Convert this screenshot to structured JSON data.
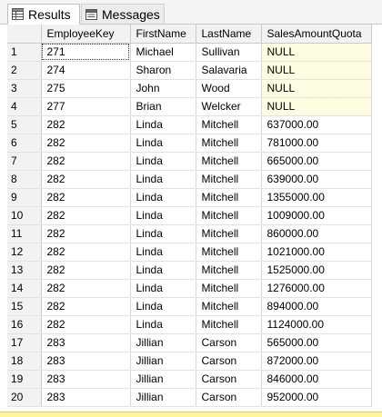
{
  "tabs": [
    {
      "label": "Results",
      "icon": "grid-icon",
      "active": true
    },
    {
      "label": "Messages",
      "icon": "messages-icon",
      "active": false
    }
  ],
  "columns": [
    "",
    "EmployeeKey",
    "FirstName",
    "LastName",
    "SalesAmountQuota"
  ],
  "rows": [
    {
      "n": "1",
      "key": "271",
      "first": "Michael",
      "last": "Sullivan",
      "quota": "NULL"
    },
    {
      "n": "2",
      "key": "274",
      "first": "Sharon",
      "last": "Salavaria",
      "quota": "NULL"
    },
    {
      "n": "3",
      "key": "275",
      "first": "John",
      "last": "Wood",
      "quota": "NULL"
    },
    {
      "n": "4",
      "key": "277",
      "first": "Brian",
      "last": "Welcker",
      "quota": "NULL"
    },
    {
      "n": "5",
      "key": "282",
      "first": "Linda",
      "last": "Mitchell",
      "quota": "637000.00"
    },
    {
      "n": "6",
      "key": "282",
      "first": "Linda",
      "last": "Mitchell",
      "quota": "781000.00"
    },
    {
      "n": "7",
      "key": "282",
      "first": "Linda",
      "last": "Mitchell",
      "quota": "665000.00"
    },
    {
      "n": "8",
      "key": "282",
      "first": "Linda",
      "last": "Mitchell",
      "quota": "639000.00"
    },
    {
      "n": "9",
      "key": "282",
      "first": "Linda",
      "last": "Mitchell",
      "quota": "1355000.00"
    },
    {
      "n": "10",
      "key": "282",
      "first": "Linda",
      "last": "Mitchell",
      "quota": "1009000.00"
    },
    {
      "n": "11",
      "key": "282",
      "first": "Linda",
      "last": "Mitchell",
      "quota": "860000.00"
    },
    {
      "n": "12",
      "key": "282",
      "first": "Linda",
      "last": "Mitchell",
      "quota": "1021000.00"
    },
    {
      "n": "13",
      "key": "282",
      "first": "Linda",
      "last": "Mitchell",
      "quota": "1525000.00"
    },
    {
      "n": "14",
      "key": "282",
      "first": "Linda",
      "last": "Mitchell",
      "quota": "1276000.00"
    },
    {
      "n": "15",
      "key": "282",
      "first": "Linda",
      "last": "Mitchell",
      "quota": "894000.00"
    },
    {
      "n": "16",
      "key": "282",
      "first": "Linda",
      "last": "Mitchell",
      "quota": "1124000.00"
    },
    {
      "n": "17",
      "key": "283",
      "first": "Jillian",
      "last": "Carson",
      "quota": "565000.00"
    },
    {
      "n": "18",
      "key": "283",
      "first": "Jillian",
      "last": "Carson",
      "quota": "872000.00"
    },
    {
      "n": "19",
      "key": "283",
      "first": "Jillian",
      "last": "Carson",
      "quota": "846000.00"
    },
    {
      "n": "20",
      "key": "283",
      "first": "Jillian",
      "last": "Carson",
      "quota": "952000.00"
    }
  ],
  "colors": {
    "null_highlight": "#fffde1",
    "status_bar": "#fff59a",
    "header_bg": "#f2f2f2"
  }
}
